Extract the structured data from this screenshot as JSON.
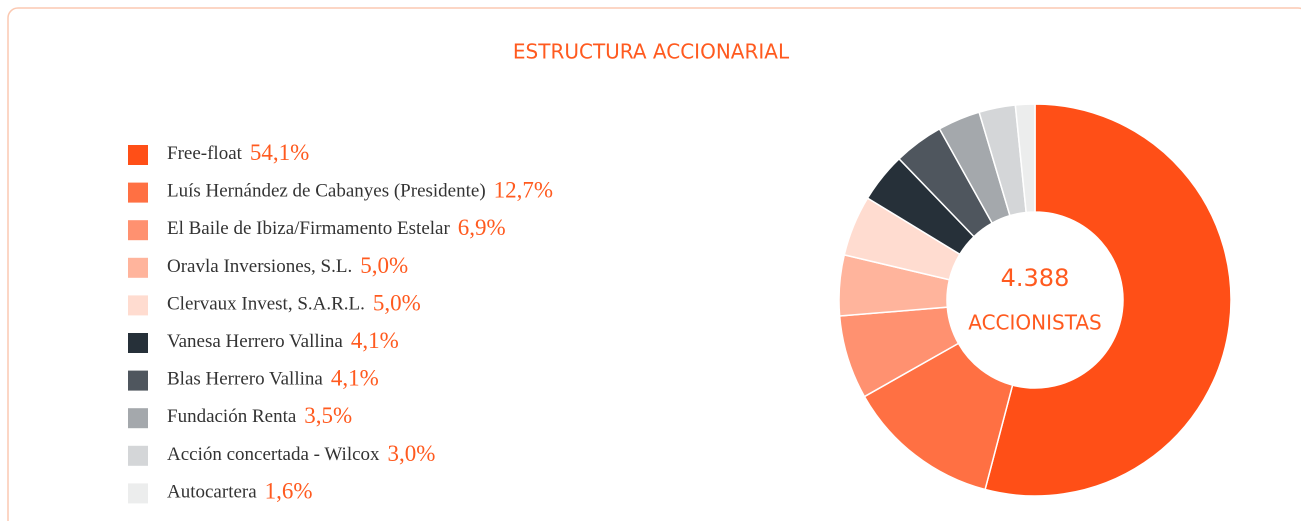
{
  "chart_data": {
    "type": "pie",
    "title": "ESTRUCTURA ACCIONARIAL",
    "annotations": [
      "4.388",
      "ACCIONISTAS"
    ],
    "categories": [
      "Free-float",
      "Luís Hernández de Cabanyes (Presidente)",
      "El Baile de Ibiza/Firmamento Estelar",
      "Oravla Inversiones, S.L.",
      "Clervaux Invest, S.A.R.L.",
      "Vanesa Herrero Vallina",
      "Blas Herrero Vallina",
      "Fundación Renta",
      "Acción concertada - Wilcox",
      "Autocartera"
    ],
    "values": [
      54.1,
      12.7,
      6.9,
      5.0,
      5.0,
      4.1,
      4.1,
      3.5,
      3.0,
      1.6
    ],
    "value_labels": [
      "54,1%",
      "12,7%",
      "6,9%",
      "5,0%",
      "5,0%",
      "4,1%",
      "4,1%",
      "3,5%",
      "3,0%",
      "1,6%"
    ],
    "colors": [
      "#ff4f17",
      "#ff7043",
      "#ff9170",
      "#ffb49c",
      "#ffdcd0",
      "#263039",
      "#4f565e",
      "#a4a8ac",
      "#d4d6d8",
      "#eceded"
    ]
  }
}
